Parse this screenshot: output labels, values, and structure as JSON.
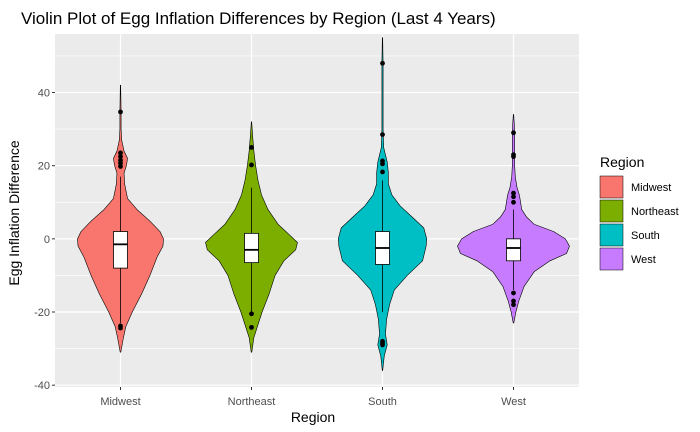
{
  "chart_data": {
    "type": "violin",
    "title": "Violin Plot of Egg Inflation Differences by Region (Last 4 Years)",
    "xlabel": "Region",
    "ylabel": "Egg Inflation Difference",
    "ylim": [
      -40.5,
      56
    ],
    "yticks": [
      -40,
      -20,
      0,
      20,
      40
    ],
    "grid": true,
    "legend": {
      "title": "Region",
      "position": "right",
      "entries": [
        "Midwest",
        "Northeast",
        "South",
        "West"
      ]
    },
    "categories": [
      "Midwest",
      "Northeast",
      "South",
      "West"
    ],
    "series": [
      {
        "name": "Midwest",
        "color": "#F8766D",
        "violin_range": [
          -31,
          42
        ],
        "violin_profile": [
          [
            -31,
            0.005
          ],
          [
            -27,
            0.05
          ],
          [
            -24,
            0.09
          ],
          [
            -20,
            0.2
          ],
          [
            -15,
            0.36
          ],
          [
            -10,
            0.5
          ],
          [
            -5,
            0.62
          ],
          [
            -2,
            0.72
          ],
          [
            0,
            0.73
          ],
          [
            2,
            0.67
          ],
          [
            5,
            0.49
          ],
          [
            8,
            0.28
          ],
          [
            11,
            0.12
          ],
          [
            15,
            0.07
          ],
          [
            18,
            0.06
          ],
          [
            20,
            0.1
          ],
          [
            22,
            0.12
          ],
          [
            24,
            0.06
          ],
          [
            27,
            0.02
          ],
          [
            30,
            0.01
          ],
          [
            35,
            0.01
          ],
          [
            42,
            0.003
          ]
        ],
        "box": {
          "q1": -8,
          "median": -1.5,
          "q3": 2,
          "whisker_low": -23,
          "whisker_high": 17
        },
        "outliers": [
          34.7,
          23.5,
          22.5,
          21.5,
          20.7,
          19.8,
          -23.8,
          -24.4
        ]
      },
      {
        "name": "Northeast",
        "color": "#7CAE00",
        "violin_range": [
          -31,
          32
        ],
        "violin_profile": [
          [
            -31,
            0.005
          ],
          [
            -27,
            0.04
          ],
          [
            -24,
            0.1
          ],
          [
            -20,
            0.18
          ],
          [
            -15,
            0.3
          ],
          [
            -10,
            0.4
          ],
          [
            -6,
            0.55
          ],
          [
            -3,
            0.75
          ],
          [
            -1,
            0.78
          ],
          [
            1,
            0.65
          ],
          [
            4,
            0.45
          ],
          [
            8,
            0.28
          ],
          [
            12,
            0.17
          ],
          [
            16,
            0.11
          ],
          [
            20,
            0.07
          ],
          [
            24,
            0.04
          ],
          [
            28,
            0.02
          ],
          [
            32,
            0.003
          ]
        ],
        "box": {
          "q1": -6.5,
          "median": -3,
          "q3": 1.5,
          "whisker_low": -20.5,
          "whisker_high": 14
        },
        "outliers": [
          25,
          20.2,
          -20.5,
          -24.2
        ]
      },
      {
        "name": "South",
        "color": "#00BFC4",
        "violin_range": [
          -36,
          55
        ],
        "violin_profile": [
          [
            -36,
            0.003
          ],
          [
            -32,
            0.03
          ],
          [
            -29,
            0.08
          ],
          [
            -26,
            0.05
          ],
          [
            -22,
            0.07
          ],
          [
            -18,
            0.12
          ],
          [
            -14,
            0.2
          ],
          [
            -10,
            0.42
          ],
          [
            -6,
            0.68
          ],
          [
            -2,
            0.74
          ],
          [
            0,
            0.75
          ],
          [
            3,
            0.7
          ],
          [
            6,
            0.5
          ],
          [
            9,
            0.3
          ],
          [
            12,
            0.16
          ],
          [
            15,
            0.1
          ],
          [
            18,
            0.1
          ],
          [
            21,
            0.08
          ],
          [
            25,
            0.02
          ],
          [
            30,
            0.01
          ],
          [
            40,
            0.01
          ],
          [
            48,
            0.01
          ],
          [
            55,
            0.003
          ]
        ],
        "box": {
          "q1": -7,
          "median": -2.5,
          "q3": 2,
          "whisker_low": -20,
          "whisker_high": 16
        },
        "outliers": [
          48,
          28.5,
          21.3,
          20.5,
          18.3,
          -28,
          -28.5,
          -29
        ]
      },
      {
        "name": "West",
        "color": "#C77CFF",
        "violin_range": [
          -23,
          34
        ],
        "violin_profile": [
          [
            -23,
            0.005
          ],
          [
            -20,
            0.04
          ],
          [
            -17,
            0.09
          ],
          [
            -13,
            0.18
          ],
          [
            -9,
            0.35
          ],
          [
            -6,
            0.62
          ],
          [
            -4,
            0.9
          ],
          [
            -2,
            0.95
          ],
          [
            0,
            0.88
          ],
          [
            2,
            0.68
          ],
          [
            4,
            0.35
          ],
          [
            6,
            0.22
          ],
          [
            8,
            0.14
          ],
          [
            10,
            0.12
          ],
          [
            12,
            0.1
          ],
          [
            14,
            0.06
          ],
          [
            17,
            0.03
          ],
          [
            20,
            0.02
          ],
          [
            24,
            0.02
          ],
          [
            28,
            0.02
          ],
          [
            31,
            0.015
          ],
          [
            34,
            0.003
          ]
        ],
        "box": {
          "q1": -6,
          "median": -2.5,
          "q3": 0,
          "whisker_low": -14,
          "whisker_high": 8
        },
        "outliers": [
          29,
          23,
          22.5,
          12.5,
          11.5,
          10,
          -14.8,
          -17,
          -18
        ]
      }
    ]
  }
}
